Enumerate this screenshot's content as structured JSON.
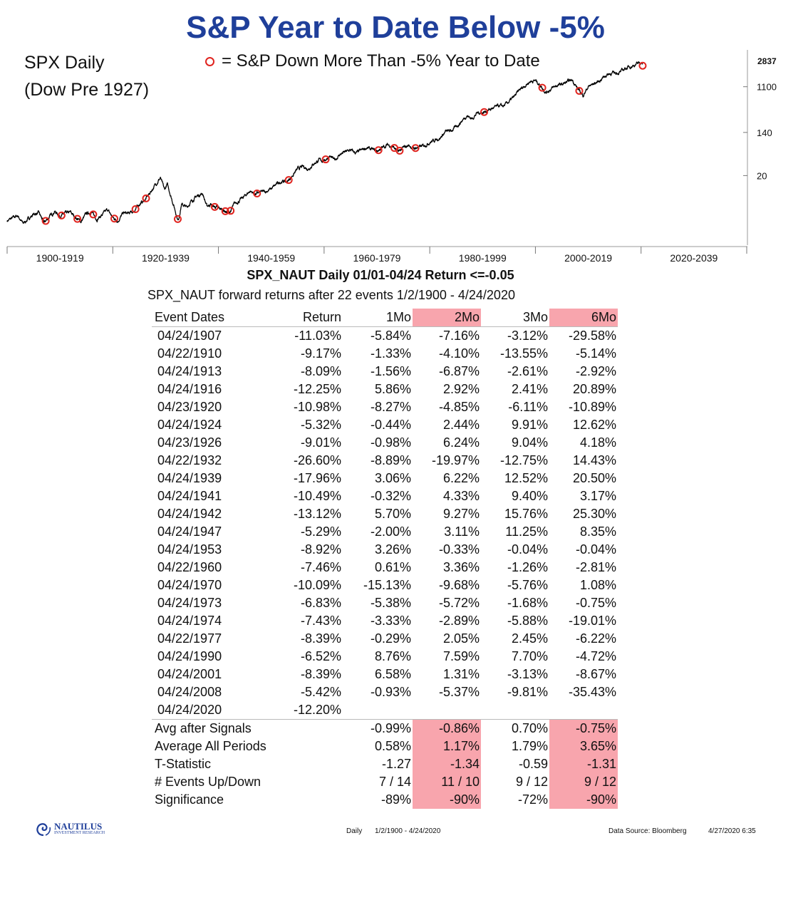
{
  "title": "S&P Year to Date Below -5%",
  "chart_label_line1": "SPX Daily",
  "chart_label_line2": "(Dow Pre 1927)",
  "legend_text": "= S&P Down More Than -5% Year to Date",
  "colors": {
    "title": "#1f3f9a",
    "marker": "#e0241f",
    "highlight": "#f8a5ad",
    "line": "#000000"
  },
  "chart_data": {
    "type": "line",
    "series": [
      {
        "name": "SPX Daily",
        "scale": "log"
      }
    ],
    "last_value_label": "2837",
    "y_ticks": [
      20,
      140,
      1100
    ],
    "x_ticks": [
      "1900-1919",
      "1920-1939",
      "1940-1959",
      "1960-1979",
      "1980-1999",
      "2000-2019",
      "2020-2039"
    ],
    "price_path": [
      [
        1900,
        2.6
      ],
      [
        1902,
        3.3
      ],
      [
        1903,
        2.3
      ],
      [
        1905,
        3.5
      ],
      [
        1906,
        3.7
      ],
      [
        1907,
        2.4
      ],
      [
        1908,
        3.1
      ],
      [
        1909,
        4.0
      ],
      [
        1910,
        3.2
      ],
      [
        1911,
        3.6
      ],
      [
        1912,
        3.8
      ],
      [
        1913,
        3.0
      ],
      [
        1914,
        2.5
      ],
      [
        1915,
        3.6
      ],
      [
        1916,
        3.8
      ],
      [
        1917,
        2.8
      ],
      [
        1918,
        3.4
      ],
      [
        1919,
        4.3
      ],
      [
        1920,
        3.0
      ],
      [
        1921,
        2.6
      ],
      [
        1922,
        3.7
      ],
      [
        1923,
        3.6
      ],
      [
        1924,
        4.0
      ],
      [
        1925,
        5.5
      ],
      [
        1926,
        6.5
      ],
      [
        1927,
        9.0
      ],
      [
        1928,
        13.0
      ],
      [
        1929,
        18.0
      ],
      [
        1929.8,
        10.5
      ],
      [
        1930.3,
        13.5
      ],
      [
        1931,
        8.0
      ],
      [
        1932.4,
        2.6
      ],
      [
        1933,
        5.5
      ],
      [
        1934,
        4.8
      ],
      [
        1935,
        6.5
      ],
      [
        1936,
        8.0
      ],
      [
        1937,
        9.0
      ],
      [
        1937.8,
        5.0
      ],
      [
        1938.5,
        5.5
      ],
      [
        1939,
        5.0
      ],
      [
        1940,
        4.6
      ],
      [
        1941,
        4.2
      ],
      [
        1942,
        3.6
      ],
      [
        1943,
        5.5
      ],
      [
        1944,
        6.5
      ],
      [
        1945,
        8.0
      ],
      [
        1946,
        10.0
      ],
      [
        1947,
        8.7
      ],
      [
        1948,
        9.5
      ],
      [
        1949,
        9.8
      ],
      [
        1950,
        11.0
      ],
      [
        1951,
        13.5
      ],
      [
        1952,
        15.5
      ],
      [
        1953,
        15.0
      ],
      [
        1954,
        20.0
      ],
      [
        1955,
        27.0
      ],
      [
        1956,
        30.0
      ],
      [
        1957,
        27.0
      ],
      [
        1958,
        34.0
      ],
      [
        1959,
        40.0
      ],
      [
        1960,
        39.0
      ],
      [
        1961,
        48.0
      ],
      [
        1962,
        40.0
      ],
      [
        1963,
        52.0
      ],
      [
        1964,
        58.0
      ],
      [
        1965,
        63.0
      ],
      [
        1966,
        55.0
      ],
      [
        1967,
        62.0
      ],
      [
        1968,
        70.0
      ],
      [
        1969,
        65.0
      ],
      [
        1970,
        60.0
      ],
      [
        1971,
        70.0
      ],
      [
        1972,
        80.0
      ],
      [
        1973,
        75.0
      ],
      [
        1974,
        58.0
      ],
      [
        1975,
        70.0
      ],
      [
        1976,
        78.0
      ],
      [
        1977,
        68.0
      ],
      [
        1978,
        72.0
      ],
      [
        1979,
        78.0
      ],
      [
        1980,
        90.0
      ],
      [
        1981,
        100.0
      ],
      [
        1982,
        110.0
      ],
      [
        1983,
        145.0
      ],
      [
        1984,
        150.0
      ],
      [
        1985,
        180.0
      ],
      [
        1986,
        230.0
      ],
      [
        1987,
        300.0
      ],
      [
        1988,
        260.0
      ],
      [
        1989,
        340.0
      ],
      [
        1990,
        340.0
      ],
      [
        1991,
        380.0
      ],
      [
        1992,
        420.0
      ],
      [
        1993,
        460.0
      ],
      [
        1994,
        460.0
      ],
      [
        1995,
        560.0
      ],
      [
        1996,
        700.0
      ],
      [
        1997,
        950.0
      ],
      [
        1998,
        1150.0
      ],
      [
        1999,
        1400.0
      ],
      [
        2000,
        1460.0
      ],
      [
        2001,
        1150.0
      ],
      [
        2002,
        850.0
      ],
      [
        2003,
        1000.0
      ],
      [
        2004,
        1150.0
      ],
      [
        2005,
        1220.0
      ],
      [
        2006,
        1350.0
      ],
      [
        2007,
        1500.0
      ],
      [
        2008,
        1000.0
      ],
      [
        2009,
        740.0
      ],
      [
        2010,
        1100.0
      ],
      [
        2011,
        1250.0
      ],
      [
        2012,
        1400.0
      ],
      [
        2013,
        1750.0
      ],
      [
        2014,
        1980.0
      ],
      [
        2015,
        2050.0
      ],
      [
        2016,
        2100.0
      ],
      [
        2017,
        2500.0
      ],
      [
        2018,
        2750.0
      ],
      [
        2019,
        3000.0
      ],
      [
        2020.1,
        3350.0
      ],
      [
        2020.3,
        2837.0
      ]
    ],
    "event_markers": [
      1907.3,
      1910.3,
      1913.3,
      1916.3,
      1920.3,
      1924.3,
      1926.3,
      1932.3,
      1939.3,
      1941.3,
      1942.3,
      1947.3,
      1953.3,
      1960.3,
      1970.3,
      1973.3,
      1974.3,
      1977.3,
      1990.3,
      2001.3,
      2008.3,
      2020.3
    ]
  },
  "stats_title": "SPX_NAUT Daily 01/01-04/24 Return <=-0.05",
  "stats_subtitle": "SPX_NAUT forward returns after 22 events 1/2/1900 - 4/24/2020",
  "table": {
    "headers": [
      "Event Dates",
      "Return",
      "1Mo",
      "2Mo",
      "3Mo",
      "6Mo"
    ],
    "rows": [
      [
        "04/24/1907",
        "-11.03%",
        "-5.84%",
        "-7.16%",
        "-3.12%",
        "-29.58%"
      ],
      [
        "04/22/1910",
        "-9.17%",
        "-1.33%",
        "-4.10%",
        "-13.55%",
        "-5.14%"
      ],
      [
        "04/24/1913",
        "-8.09%",
        "-1.56%",
        "-6.87%",
        "-2.61%",
        "-2.92%"
      ],
      [
        "04/24/1916",
        "-12.25%",
        "5.86%",
        "2.92%",
        "2.41%",
        "20.89%"
      ],
      [
        "04/23/1920",
        "-10.98%",
        "-8.27%",
        "-4.85%",
        "-6.11%",
        "-10.89%"
      ],
      [
        "04/24/1924",
        "-5.32%",
        "-0.44%",
        "2.44%",
        "9.91%",
        "12.62%"
      ],
      [
        "04/23/1926",
        "-9.01%",
        "-0.98%",
        "6.24%",
        "9.04%",
        "4.18%"
      ],
      [
        "04/22/1932",
        "-26.60%",
        "-8.89%",
        "-19.97%",
        "-12.75%",
        "14.43%"
      ],
      [
        "04/24/1939",
        "-17.96%",
        "3.06%",
        "6.22%",
        "12.52%",
        "20.50%"
      ],
      [
        "04/24/1941",
        "-10.49%",
        "-0.32%",
        "4.33%",
        "9.40%",
        "3.17%"
      ],
      [
        "04/24/1942",
        "-13.12%",
        "5.70%",
        "9.27%",
        "15.76%",
        "25.30%"
      ],
      [
        "04/24/1947",
        "-5.29%",
        "-2.00%",
        "3.11%",
        "11.25%",
        "8.35%"
      ],
      [
        "04/24/1953",
        "-8.92%",
        "3.26%",
        "-0.33%",
        "-0.04%",
        "-0.04%"
      ],
      [
        "04/22/1960",
        "-7.46%",
        "0.61%",
        "3.36%",
        "-1.26%",
        "-2.81%"
      ],
      [
        "04/24/1970",
        "-10.09%",
        "-15.13%",
        "-9.68%",
        "-5.76%",
        "1.08%"
      ],
      [
        "04/24/1973",
        "-6.83%",
        "-5.38%",
        "-5.72%",
        "-1.68%",
        "-0.75%"
      ],
      [
        "04/24/1974",
        "-7.43%",
        "-3.33%",
        "-2.89%",
        "-5.88%",
        "-19.01%"
      ],
      [
        "04/22/1977",
        "-8.39%",
        "-0.29%",
        "2.05%",
        "2.45%",
        "-6.22%"
      ],
      [
        "04/24/1990",
        "-6.52%",
        "8.76%",
        "7.59%",
        "7.70%",
        "-4.72%"
      ],
      [
        "04/24/2001",
        "-8.39%",
        "6.58%",
        "1.31%",
        "-3.13%",
        "-8.67%"
      ],
      [
        "04/24/2008",
        "-5.42%",
        "-0.93%",
        "-5.37%",
        "-9.81%",
        "-35.43%"
      ],
      [
        "04/24/2020",
        "-12.20%",
        "",
        "",
        "",
        ""
      ]
    ],
    "summary": [
      [
        "Avg after Signals",
        "",
        "-0.99%",
        "-0.86%",
        "0.70%",
        "-0.75%"
      ],
      [
        "Average All Periods",
        "",
        "0.58%",
        "1.17%",
        "1.79%",
        "3.65%"
      ],
      [
        "T-Statistic",
        "",
        "-1.27",
        "-1.34",
        "-0.59",
        "-1.31"
      ],
      [
        "# Events Up/Down",
        "",
        "7 / 14",
        "11 / 10",
        "9 / 12",
        "9 / 12"
      ],
      [
        "Significance",
        "",
        "-89%",
        "-90%",
        "-72%",
        "-90%"
      ]
    ]
  },
  "footer": {
    "logo_name": "NAUTILUS",
    "logo_tag": "INVESTMENT RESEARCH",
    "period": "Daily",
    "range": "1/2/1900 - 4/24/2020",
    "source": "Data Source: Bloomberg",
    "timestamp": "4/27/2020 6:35"
  }
}
